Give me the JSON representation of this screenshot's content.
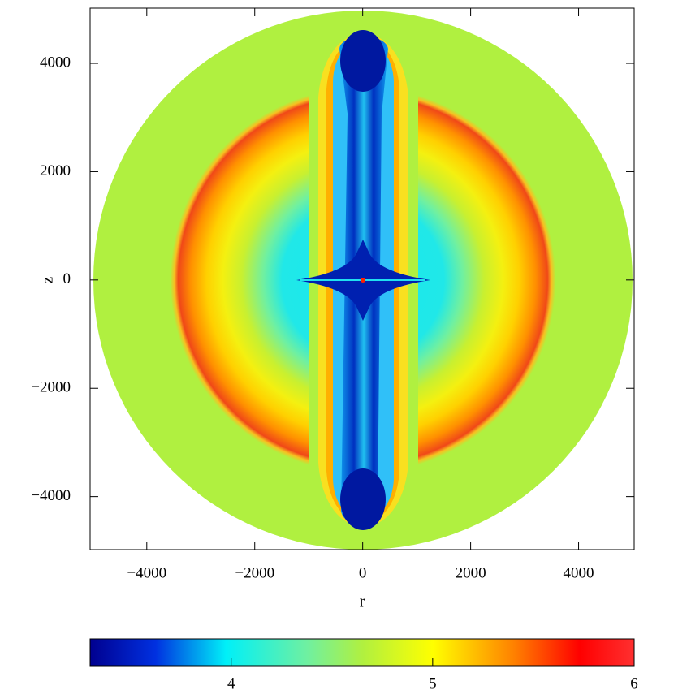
{
  "chart_data": {
    "type": "heatmap",
    "xlabel": "r",
    "ylabel": "z",
    "xlim": [
      -5050,
      5030
    ],
    "ylim": [
      -4980,
      5020
    ],
    "xticks": [
      {
        "value": -4000,
        "label": "−4000"
      },
      {
        "value": -2000,
        "label": "−2000"
      },
      0,
      2000,
      4000
    ],
    "yticks": [
      {
        "value": -4000,
        "label": "−4000"
      },
      {
        "value": -2000,
        "label": "−2000"
      },
      0,
      2000,
      4000
    ],
    "colorbar": {
      "clim": [
        3.3,
        6
      ],
      "ticks": [
        4,
        5,
        6
      ]
    }
  }
}
